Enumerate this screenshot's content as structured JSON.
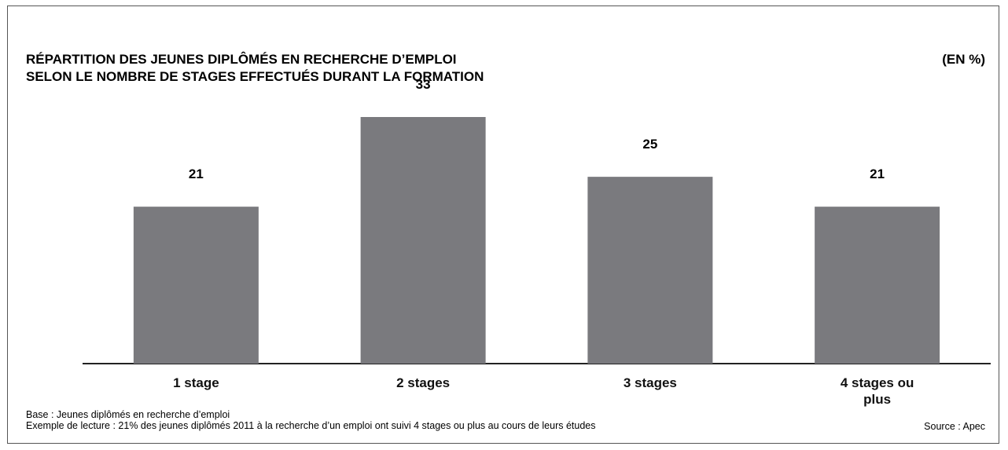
{
  "chart_data": {
    "type": "bar",
    "title": [
      "RÉPARTITION DES JEUNES DIPLÔMÉS EN RECHERCHE D’EMPLOI",
      "SELON LE NOMBRE DE STAGES EFFECTUÉS DURANT LA FORMATION"
    ],
    "unit_label": "(EN %)",
    "categories": [
      "1 stage",
      "2 stages",
      "3 stages",
      "4 stages ou plus"
    ],
    "values": [
      21,
      33,
      25,
      21
    ],
    "color": "#7a7a7e",
    "notes": [
      "Base : Jeunes diplômés en recherche d’emploi",
      "Exemple de lecture : 21% des jeunes diplômés 2011 à la recherche d’un emploi ont suivi 4 stages ou plus au cours de leurs études"
    ],
    "source": "Source : Apec"
  }
}
